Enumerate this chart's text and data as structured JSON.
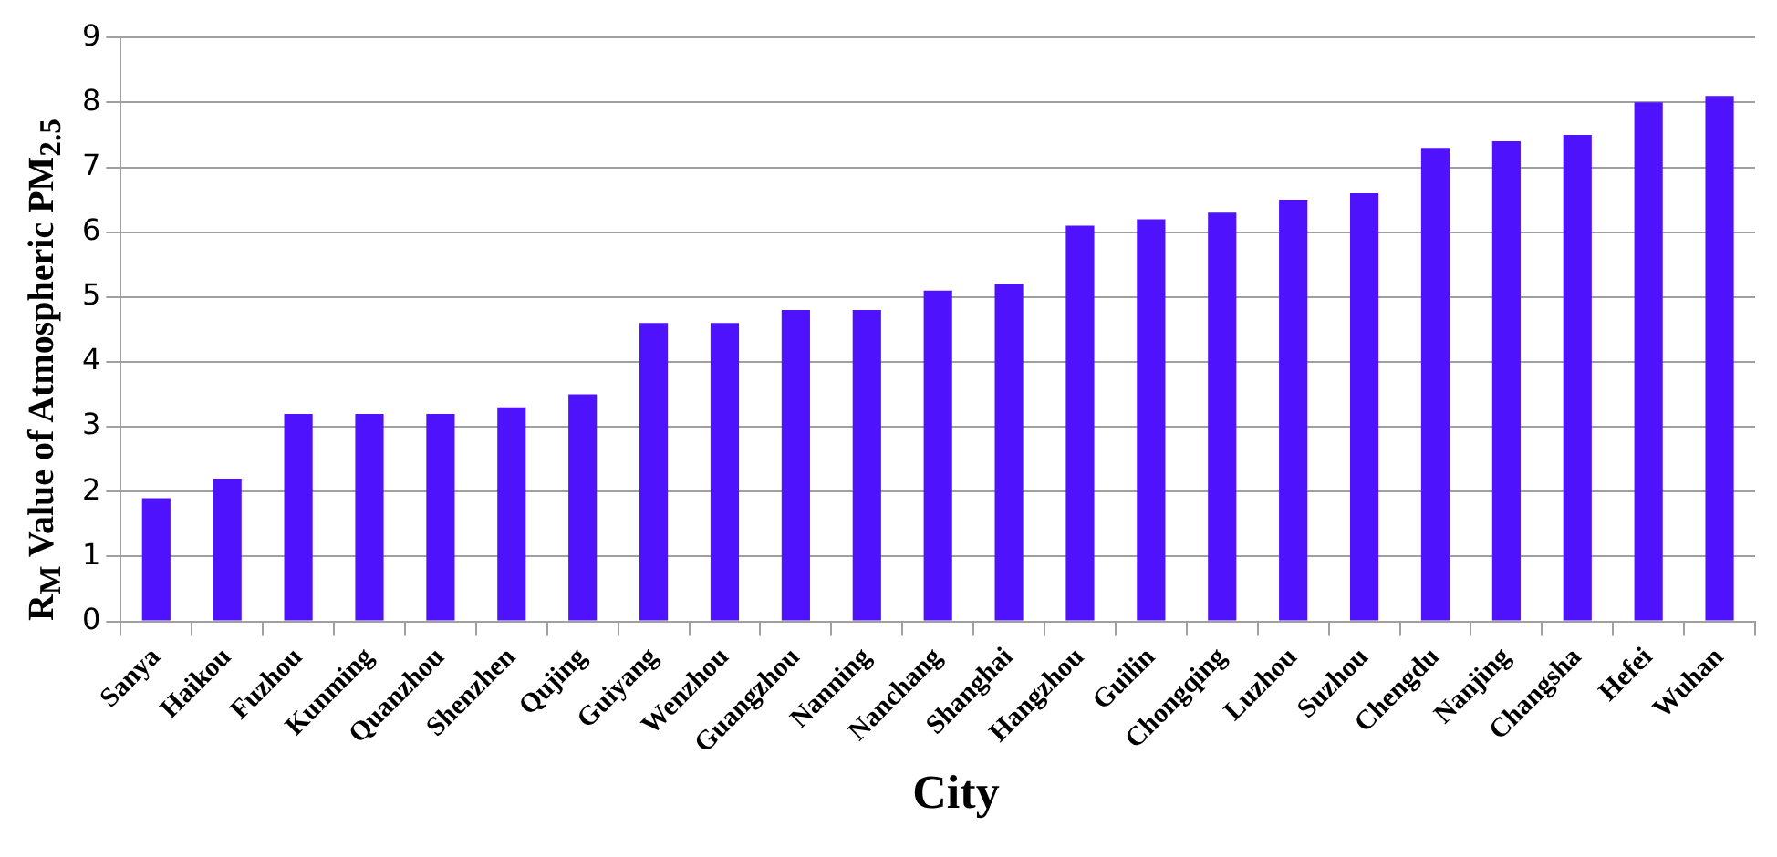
{
  "chart_data": {
    "type": "bar",
    "xlabel": "City",
    "ylabel": "R$_{M}$ Value of Atmospheric PM$_{2.5}$",
    "categories": [
      "Sanya",
      "Haikou",
      "Fuzhou",
      "Kunming",
      "Quanzhou",
      "Shenzhen",
      "Qujing",
      "Guiyang",
      "Wenzhou",
      "Guangzhou",
      "Nanning",
      "Nanchang",
      "Shanghai",
      "Hangzhou",
      "Guilin",
      "Chongqing",
      "Luzhou",
      "Suzhou",
      "Chengdu",
      "Nanjing",
      "Changsha",
      "Hefei",
      "Wuhan"
    ],
    "values": [
      1.9,
      2.2,
      3.2,
      3.2,
      3.2,
      3.3,
      3.5,
      4.6,
      4.6,
      4.8,
      4.8,
      5.1,
      5.2,
      6.1,
      6.2,
      6.3,
      6.5,
      6.6,
      7.3,
      7.4,
      7.5,
      8.0,
      8.1
    ],
    "color": "#4f12fc",
    "ylim": [
      0,
      9
    ],
    "yticks": [
      0,
      1,
      2,
      3,
      4,
      5,
      6,
      7,
      8,
      9
    ],
    "grid": "y"
  }
}
